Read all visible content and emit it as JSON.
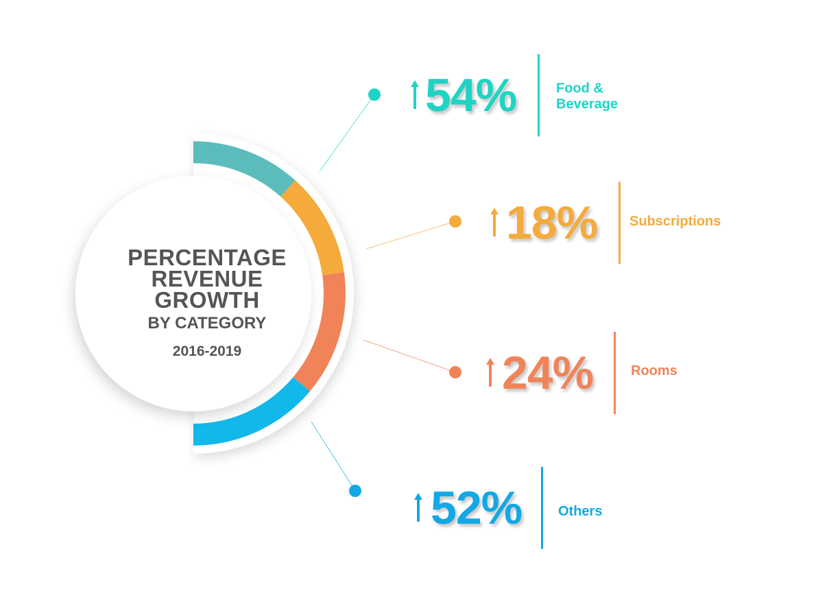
{
  "center": {
    "title_lines": [
      "PERCENTAGE",
      "REVENUE",
      "GROWTH"
    ],
    "subtitle": "BY CATEGORY",
    "years": "2016-2019"
  },
  "chart_data": {
    "type": "bar",
    "categories": [
      "Food & Beverage",
      "Subscriptions",
      "Rooms",
      "Others"
    ],
    "values": [
      54,
      18,
      24,
      52
    ],
    "value_labels": [
      "54%",
      "18%",
      "24%",
      "52%"
    ],
    "colors": [
      "#1ed4c4",
      "#f5aa3c",
      "#f08458",
      "#12a8e4"
    ],
    "ring_colors": [
      "#5cbcbc",
      "#f5aa3c",
      "#f08458",
      "#12b8ea"
    ]
  }
}
